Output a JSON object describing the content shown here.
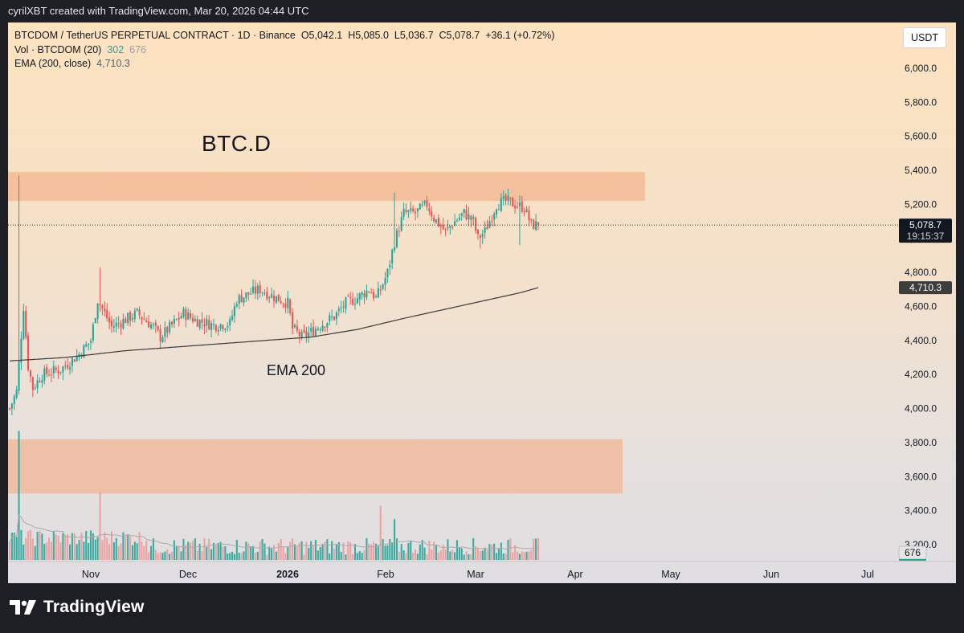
{
  "header": {
    "attribution": "cyrilXBT created with TradingView.com, Mar 20, 2026 04:44 UTC"
  },
  "legend": {
    "symbol_line": "BTCDOM / TetherUS PERPETUAL CONTRACT · 1D · Binance",
    "ohlc": {
      "open": "O5,042.1",
      "high": "H5,085.0",
      "low": "L5,036.7",
      "close": "C5,078.7",
      "change": "+36.1 (+0.72%)"
    },
    "vol_label": "Vol · BTCDOM (20)",
    "vol_value": "302",
    "vol_ma": "676",
    "ema_label": "EMA (200, close)",
    "ema_value": "4,710.3"
  },
  "toolbar": {
    "currency": "USDT"
  },
  "annotations": {
    "title": "BTC.D",
    "ema_text": "EMA 200"
  },
  "price_badges": {
    "last": "5,078.7",
    "countdown": "19:15:37",
    "ema": "4,710.3",
    "volume": "676"
  },
  "brand": {
    "name": "TradingView",
    "logo": "tradingview-logo-icon"
  },
  "colors": {
    "up": "#26a69a",
    "down": "#ef5350",
    "vol_up": "#26a69a",
    "vol_down": "#ef9a9a",
    "zone": "#f4a57a",
    "ema": "#3a3a3a"
  },
  "chart_data": {
    "type": "candlestick",
    "y_axis": {
      "min": 3200,
      "max": 6000,
      "ticks": [
        "3,200.0",
        "3,400.0",
        "3,600.0",
        "3,800.0",
        "4,000.0",
        "4,200.0",
        "4,400.0",
        "4,600.0",
        "4,800.0",
        "5,000.0",
        "5,200.0",
        "5,400.0",
        "5,600.0",
        "5,800.0",
        "6,000.0"
      ]
    },
    "x_axis": {
      "labels": [
        "Nov",
        "Dec",
        "2026",
        "Feb",
        "Mar",
        "Apr",
        "May",
        "Jun",
        "Jul"
      ],
      "bold": "2026"
    },
    "zones": [
      {
        "low": 5220,
        "high": 5390
      },
      {
        "low": 3500,
        "high": 3820
      }
    ],
    "last_price": 5078.7,
    "ema_last": 4710.3,
    "ema_anchors": [
      [
        0,
        4280
      ],
      [
        24,
        4300
      ],
      [
        50,
        4340
      ],
      [
        80,
        4370
      ],
      [
        110,
        4400
      ],
      [
        130,
        4420
      ],
      [
        150,
        4465
      ],
      [
        170,
        4530
      ],
      [
        200,
        4620
      ],
      [
        220,
        4680
      ],
      [
        228,
        4710.3
      ]
    ],
    "close_anchors": [
      [
        0,
        4000
      ],
      [
        3,
        4100
      ],
      [
        6,
        4600
      ],
      [
        8,
        4250
      ],
      [
        10,
        4120
      ],
      [
        14,
        4200
      ],
      [
        22,
        4230
      ],
      [
        30,
        4320
      ],
      [
        35,
        4400
      ],
      [
        38,
        4640
      ],
      [
        44,
        4480
      ],
      [
        55,
        4560
      ],
      [
        62,
        4480
      ],
      [
        65,
        4420
      ],
      [
        75,
        4560
      ],
      [
        80,
        4520
      ],
      [
        88,
        4490
      ],
      [
        95,
        4500
      ],
      [
        98,
        4640
      ],
      [
        104,
        4680
      ],
      [
        108,
        4700
      ],
      [
        115,
        4650
      ],
      [
        120,
        4620
      ],
      [
        122,
        4470
      ],
      [
        126,
        4420
      ],
      [
        130,
        4450
      ],
      [
        134,
        4490
      ],
      [
        140,
        4540
      ],
      [
        145,
        4620
      ],
      [
        150,
        4650
      ],
      [
        155,
        4700
      ],
      [
        158,
        4650
      ],
      [
        160,
        4700
      ],
      [
        163,
        4800
      ],
      [
        166,
        4980
      ],
      [
        170,
        5150
      ],
      [
        175,
        5150
      ],
      [
        180,
        5200
      ],
      [
        183,
        5120
      ],
      [
        188,
        5040
      ],
      [
        192,
        5100
      ],
      [
        196,
        5150
      ],
      [
        200,
        5100
      ],
      [
        202,
        5000
      ],
      [
        205,
        5040
      ],
      [
        210,
        5200
      ],
      [
        214,
        5220
      ],
      [
        218,
        5200
      ],
      [
        222,
        5180
      ],
      [
        225,
        5080
      ],
      [
        228,
        5078.7
      ]
    ],
    "spikes": [
      {
        "i": 4,
        "high": 5370
      },
      {
        "i": 39,
        "high": 4830
      },
      {
        "i": 166,
        "high": 5270
      },
      {
        "i": 203,
        "low": 4940
      },
      {
        "i": 220,
        "low": 4960
      }
    ],
    "candle_count": 229,
    "volume_ma": 676,
    "volume_spikes": [
      {
        "i": 4,
        "v": 3800
      },
      {
        "i": 39,
        "v": 2000
      },
      {
        "i": 160,
        "v": 1600
      },
      {
        "i": 166,
        "v": 1200
      }
    ],
    "volume_scale": {
      "min": 0,
      "max": 4000
    }
  }
}
